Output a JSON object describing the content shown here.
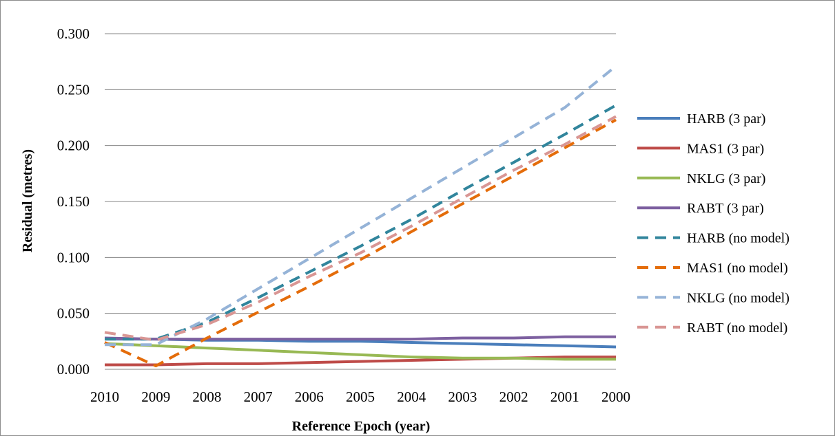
{
  "chart_data": {
    "type": "line",
    "title": "",
    "xlabel": "Reference Epoch (year)",
    "ylabel": "Residual (metres)",
    "x": [
      "2010",
      "2009",
      "2008",
      "2007",
      "2006",
      "2005",
      "2004",
      "2003",
      "2002",
      "2001",
      "2000"
    ],
    "ylim": [
      0,
      0.3
    ],
    "yticks": [
      "0.000",
      "0.050",
      "0.100",
      "0.150",
      "0.200",
      "0.250",
      "0.300"
    ],
    "grid": "horizontal",
    "legend_position": "right",
    "series": [
      {
        "name": "HARB (3 par)",
        "style": "solid",
        "color": "#4a7ebb",
        "values": [
          0.027,
          0.027,
          0.026,
          0.026,
          0.025,
          0.025,
          0.024,
          0.023,
          0.022,
          0.021,
          0.02
        ]
      },
      {
        "name": "MAS1 (3 par)",
        "style": "solid",
        "color": "#be4b48",
        "values": [
          0.004,
          0.004,
          0.005,
          0.005,
          0.006,
          0.007,
          0.008,
          0.009,
          0.01,
          0.011,
          0.011
        ]
      },
      {
        "name": "NKLG (3 par)",
        "style": "solid",
        "color": "#98b954",
        "values": [
          0.023,
          0.021,
          0.019,
          0.017,
          0.015,
          0.013,
          0.011,
          0.01,
          0.01,
          0.009,
          0.009
        ]
      },
      {
        "name": "RABT (3 par)",
        "style": "solid",
        "color": "#7d60a0",
        "values": [
          0.028,
          0.027,
          0.027,
          0.027,
          0.027,
          0.027,
          0.027,
          0.028,
          0.028,
          0.029,
          0.029
        ]
      },
      {
        "name": "HARB (no model)",
        "style": "dashed",
        "color": "#31859c",
        "values": [
          0.027,
          0.027,
          0.042,
          0.064,
          0.087,
          0.11,
          0.134,
          0.16,
          0.185,
          0.21,
          0.236
        ]
      },
      {
        "name": "MAS1 (no model)",
        "style": "dashed",
        "color": "#e46c0a",
        "values": [
          0.024,
          0.003,
          0.028,
          0.051,
          0.074,
          0.098,
          0.123,
          0.148,
          0.173,
          0.198,
          0.223
        ]
      },
      {
        "name": "NKLG (no model)",
        "style": "dashed",
        "color": "#95b3d7",
        "values": [
          0.022,
          0.022,
          0.045,
          0.072,
          0.099,
          0.126,
          0.153,
          0.18,
          0.207,
          0.234,
          0.271
        ]
      },
      {
        "name": "RABT (no model)",
        "style": "dashed",
        "color": "#d99694",
        "values": [
          0.033,
          0.026,
          0.04,
          0.06,
          0.083,
          0.104,
          0.128,
          0.153,
          0.178,
          0.201,
          0.226
        ]
      }
    ]
  }
}
